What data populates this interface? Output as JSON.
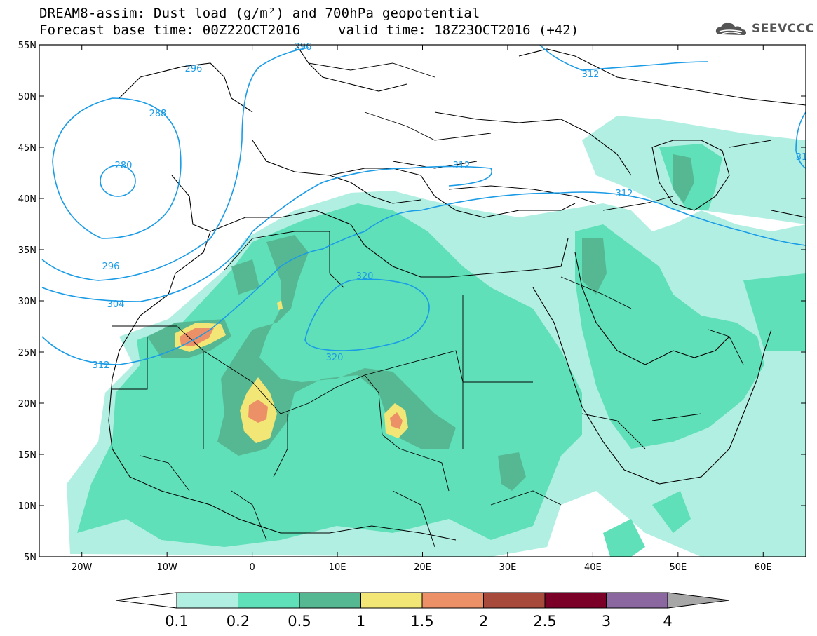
{
  "header": {
    "title": "DREAM8-assim: Dust load (g/m²) and 700hPa geopotential",
    "base_time": "Forecast base time: 00Z22OCT2016",
    "valid_time": "valid time: 18Z23OCT2016 (+42)"
  },
  "logo": {
    "text": "SEEVCCC",
    "icon": "cloud-logo-icon",
    "color": "#555555"
  },
  "map": {
    "lon_range": [
      -25,
      65
    ],
    "lat_range": [
      5,
      55
    ],
    "lat_ticks": [
      "55N",
      "50N",
      "45N",
      "40N",
      "35N",
      "30N",
      "25N",
      "20N",
      "15N",
      "10N",
      "5N"
    ],
    "lon_ticks": [
      "20W",
      "10W",
      "0",
      "10E",
      "20E",
      "30E",
      "40E",
      "50E",
      "60E"
    ],
    "contour_color": "#1a9be6",
    "contour_labels": [
      "296",
      "296",
      "288",
      "280",
      "296",
      "304",
      "312",
      "312",
      "312",
      "312",
      "320",
      "320",
      "31"
    ]
  },
  "colorbar": {
    "levels": [
      "0.1",
      "0.2",
      "0.5",
      "1",
      "1.5",
      "2",
      "2.5",
      "3",
      "4"
    ],
    "colors": [
      "#b2efe3",
      "#5fe0b8",
      "#56b893",
      "#f2e776",
      "#ec9068",
      "#a7493b",
      "#7a0027",
      "#8a679e",
      "#a7a7a7"
    ]
  }
}
